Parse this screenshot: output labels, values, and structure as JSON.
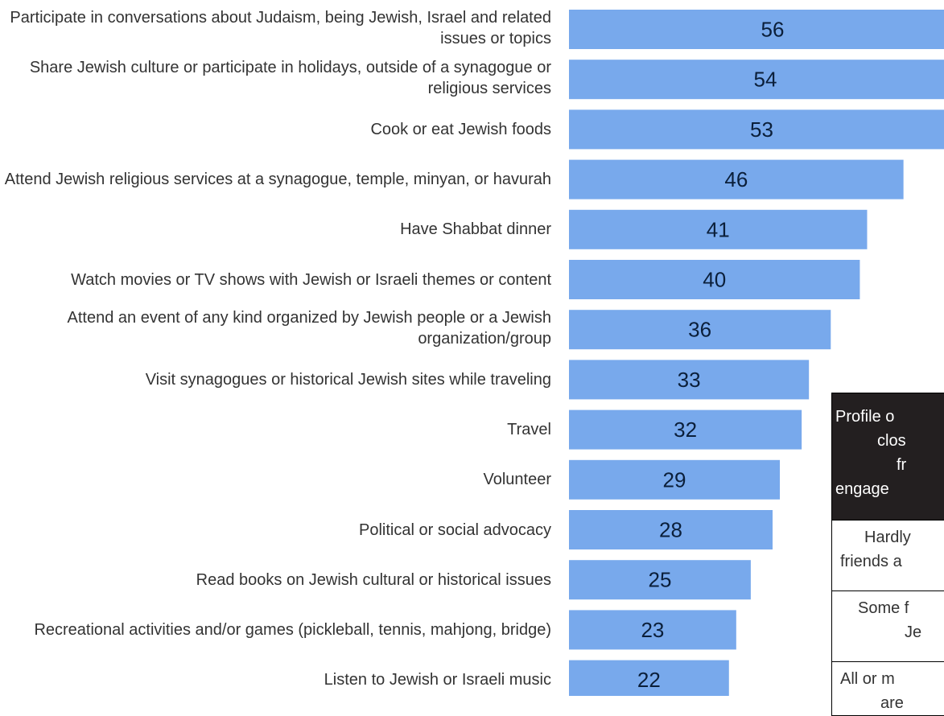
{
  "chart_data": {
    "type": "bar",
    "orientation": "horizontal",
    "categories": [
      "Participate in conversations about Judaism, being Jewish, Israel and related issues or topics",
      "Share Jewish culture or participate in holidays, outside of a synagogue or religious services",
      "Cook or eat Jewish foods",
      "Attend Jewish religious services at a synagogue, temple, minyan, or havurah",
      "Have Shabbat dinner",
      "Watch movies or TV shows with Jewish or Israeli themes or content",
      "Attend an event of any kind organized by Jewish people or a Jewish organization/group",
      "Visit synagogues or historical Jewish sites while traveling",
      "Travel",
      "Volunteer",
      "Political or social advocacy",
      "Read books on Jewish cultural or historical issues",
      "Recreational activities and/or games (pickleball, tennis, mahjong, bridge)",
      "Listen to Jewish or Israeli music"
    ],
    "values": [
      56,
      54,
      53,
      46,
      41,
      40,
      36,
      33,
      32,
      29,
      28,
      25,
      23,
      22
    ],
    "xlim": [
      0,
      56
    ],
    "bar_color": "#78a9ec",
    "value_label_color": "#0b1f3a",
    "grid": false
  },
  "profile_box": {
    "header_lines": [
      "Profile o",
      "clos",
      "fr",
      "engage"
    ],
    "rows": [
      [
        "Hardly",
        "friends a"
      ],
      [
        "Some f",
        "Je"
      ],
      [
        "All or m",
        "are"
      ]
    ],
    "header_bg": "#231f20"
  }
}
